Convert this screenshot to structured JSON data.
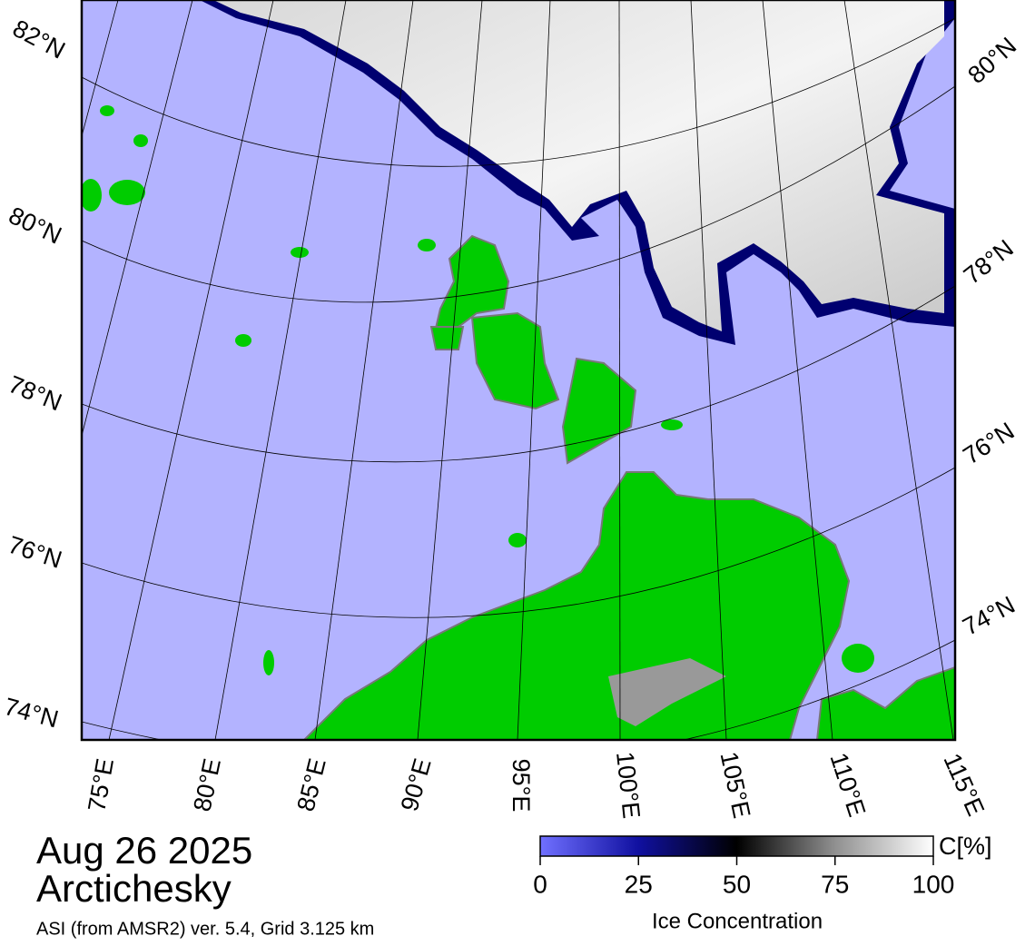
{
  "header": {
    "date": "Aug 26 2025",
    "location": "Arctichesky",
    "source": "ASI (from AMSR2) ver. 5.4,  Grid 3.125 km"
  },
  "map": {
    "left_lat_labels": [
      "82°N",
      "80°N",
      "78°N",
      "76°N",
      "74°N"
    ],
    "right_lat_labels": [
      "80°N",
      "78°N",
      "76°N",
      "74°N"
    ],
    "lon_labels": [
      "75°E",
      "80°E",
      "85°E",
      "90°E",
      "95°E",
      "100°E",
      "105°E",
      "110°E",
      "115°E"
    ]
  },
  "colorbar": {
    "title": "Ice Concentration",
    "unit": "C[%]",
    "lim": [
      0,
      100
    ],
    "ticks": [
      0,
      25,
      50,
      75,
      100
    ]
  }
}
